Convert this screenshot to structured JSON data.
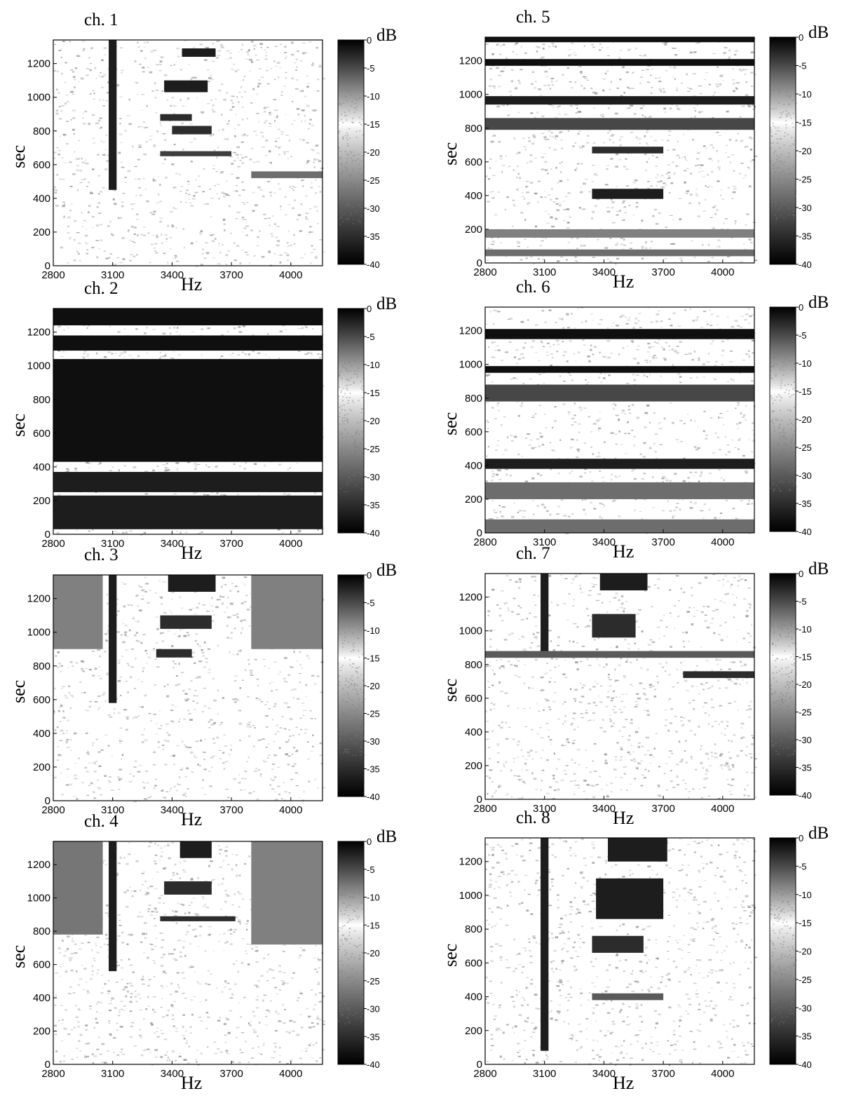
{
  "chart_data": [
    {
      "type": "heatmap",
      "title": "ch. 1",
      "xlabel": "Hz",
      "ylabel": "sec",
      "colorbar_label": "dB",
      "x_ticks": [
        "2800",
        "3100",
        "3400",
        "3700",
        "4000"
      ],
      "y_ticks": [
        "0",
        "200",
        "400",
        "600",
        "800",
        "1000",
        "1200"
      ],
      "colorbar_ticks": [
        "0",
        "-5",
        "-10",
        "-15",
        "-20",
        "-25",
        "-30",
        "-35",
        "-40"
      ],
      "xlim": [
        2800,
        4160
      ],
      "ylim": [
        0,
        1340
      ],
      "clim": [
        -40,
        0
      ],
      "colormap": "white at -15 dB, black at 0 and -40 dB",
      "bands": [
        {
          "y": [
            1240,
            1290
          ],
          "x": [
            3450,
            3620
          ],
          "level": -2
        },
        {
          "y": [
            1030,
            1100
          ],
          "x": [
            3360,
            3580
          ],
          "level": -2
        },
        {
          "y": [
            860,
            900
          ],
          "x": [
            3340,
            3500
          ],
          "level": -3
        },
        {
          "y": [
            780,
            830
          ],
          "x": [
            3400,
            3600
          ],
          "level": -3
        },
        {
          "y": [
            450,
            1340
          ],
          "x": [
            3080,
            3120
          ],
          "level": -2
        },
        {
          "y": [
            650,
            680
          ],
          "x": [
            3340,
            3700
          ],
          "level": -33
        },
        {
          "y": [
            520,
            560
          ],
          "x": [
            3800,
            4160
          ],
          "level": -28
        }
      ]
    },
    {
      "type": "heatmap",
      "title": "ch. 5",
      "xlabel": "Hz",
      "ylabel": "sec",
      "colorbar_label": "dB",
      "x_ticks": [
        "2800",
        "3100",
        "3400",
        "3700",
        "4000"
      ],
      "y_ticks": [
        "0",
        "200",
        "400",
        "600",
        "800",
        "1000",
        "1200"
      ],
      "colorbar_ticks": [
        "0",
        "-5",
        "-10",
        "-15",
        "-20",
        "-25",
        "-30",
        "-35",
        "-40"
      ],
      "xlim": [
        2800,
        4160
      ],
      "ylim": [
        0,
        1340
      ],
      "clim": [
        -40,
        0
      ],
      "colormap": "white at -15 dB, black at 0 and -40 dB",
      "bands": [
        {
          "y": [
            1310,
            1340
          ],
          "x": [
            2800,
            4160
          ],
          "level": -1
        },
        {
          "y": [
            1170,
            1210
          ],
          "x": [
            2800,
            4160
          ],
          "level": -1
        },
        {
          "y": [
            940,
            990
          ],
          "x": [
            2800,
            4160
          ],
          "level": -2
        },
        {
          "y": [
            790,
            860
          ],
          "x": [
            2800,
            4160
          ],
          "level": -32
        },
        {
          "y": [
            380,
            440
          ],
          "x": [
            3340,
            3700
          ],
          "level": -2
        },
        {
          "y": [
            650,
            690
          ],
          "x": [
            3340,
            3700
          ],
          "level": -3
        },
        {
          "y": [
            40,
            80
          ],
          "x": [
            2800,
            4160
          ],
          "level": -28
        },
        {
          "y": [
            150,
            200
          ],
          "x": [
            2800,
            4160
          ],
          "level": -26
        }
      ]
    },
    {
      "type": "heatmap",
      "title": "ch. 2",
      "xlabel": "Hz",
      "ylabel": "sec",
      "colorbar_label": "dB",
      "x_ticks": [
        "2800",
        "3100",
        "3400",
        "3700",
        "4000"
      ],
      "y_ticks": [
        "0",
        "200",
        "400",
        "600",
        "800",
        "1000",
        "1200"
      ],
      "colorbar_ticks": [
        "0",
        "-5",
        "-10",
        "-15",
        "-20",
        "-25",
        "-30",
        "-35",
        "-40"
      ],
      "xlim": [
        2800,
        4160
      ],
      "ylim": [
        0,
        1340
      ],
      "clim": [
        -40,
        0
      ],
      "colormap": "white at -15 dB, black at 0 and -40 dB",
      "bands": [
        {
          "y": [
            430,
            1040
          ],
          "x": [
            2800,
            4160
          ],
          "level": -1
        },
        {
          "y": [
            1090,
            1180
          ],
          "x": [
            2800,
            4160
          ],
          "level": -1
        },
        {
          "y": [
            1240,
            1340
          ],
          "x": [
            2800,
            4160
          ],
          "level": -1
        },
        {
          "y": [
            30,
            230
          ],
          "x": [
            2800,
            4160
          ],
          "level": -2
        },
        {
          "y": [
            250,
            370
          ],
          "x": [
            2800,
            4160
          ],
          "level": -2
        }
      ]
    },
    {
      "type": "heatmap",
      "title": "ch. 6",
      "xlabel": "Hz",
      "ylabel": "sec",
      "colorbar_label": "dB",
      "x_ticks": [
        "2800",
        "3100",
        "3400",
        "3700",
        "4000"
      ],
      "y_ticks": [
        "0",
        "200",
        "400",
        "600",
        "800",
        "1000",
        "1200"
      ],
      "colorbar_ticks": [
        "0",
        "-5",
        "-10",
        "-15",
        "-20",
        "-25",
        "-30",
        "-35",
        "-40"
      ],
      "xlim": [
        2800,
        4160
      ],
      "ylim": [
        0,
        1340
      ],
      "clim": [
        -40,
        0
      ],
      "colormap": "white at -15 dB, black at 0 and -40 dB",
      "bands": [
        {
          "y": [
            1150,
            1210
          ],
          "x": [
            2800,
            4160
          ],
          "level": -1
        },
        {
          "y": [
            950,
            990
          ],
          "x": [
            2800,
            4160
          ],
          "level": -1
        },
        {
          "y": [
            780,
            880
          ],
          "x": [
            2800,
            4160
          ],
          "level": -32
        },
        {
          "y": [
            380,
            440
          ],
          "x": [
            2800,
            4160
          ],
          "level": -2
        },
        {
          "y": [
            200,
            300
          ],
          "x": [
            2800,
            4160
          ],
          "level": -28
        },
        {
          "y": [
            0,
            80
          ],
          "x": [
            2800,
            4160
          ],
          "level": -28
        }
      ]
    },
    {
      "type": "heatmap",
      "title": "ch. 3",
      "xlabel": "Hz",
      "ylabel": "sec",
      "colorbar_label": "dB",
      "x_ticks": [
        "2800",
        "3100",
        "3400",
        "3700",
        "4000"
      ],
      "y_ticks": [
        "0",
        "200",
        "400",
        "600",
        "800",
        "1000",
        "1200"
      ],
      "colorbar_ticks": [
        "0",
        "-5",
        "-10",
        "-15",
        "-20",
        "-25",
        "-30",
        "-35",
        "-40"
      ],
      "xlim": [
        2800,
        4160
      ],
      "ylim": [
        0,
        1340
      ],
      "clim": [
        -40,
        0
      ],
      "colormap": "white at -15 dB, black at 0 and -40 dB",
      "bands": [
        {
          "y": [
            1240,
            1340
          ],
          "x": [
            3380,
            3620
          ],
          "level": -2
        },
        {
          "y": [
            1020,
            1100
          ],
          "x": [
            3340,
            3600
          ],
          "level": -3
        },
        {
          "y": [
            850,
            900
          ],
          "x": [
            3320,
            3500
          ],
          "level": -3
        },
        {
          "y": [
            580,
            1340
          ],
          "x": [
            3080,
            3120
          ],
          "level": -2
        },
        {
          "y": [
            900,
            1340
          ],
          "x": [
            2800,
            3050
          ],
          "level": -26
        },
        {
          "y": [
            900,
            1340
          ],
          "x": [
            3800,
            4160
          ],
          "level": -26
        }
      ]
    },
    {
      "type": "heatmap",
      "title": "ch. 7",
      "xlabel": "Hz",
      "ylabel": "sec",
      "colorbar_label": "dB",
      "x_ticks": [
        "2800",
        "3100",
        "3400",
        "3700",
        "4000"
      ],
      "y_ticks": [
        "0",
        "200",
        "400",
        "600",
        "800",
        "1000",
        "1200"
      ],
      "colorbar_ticks": [
        "0",
        "-5",
        "-10",
        "-15",
        "-20",
        "-25",
        "-30",
        "-35",
        "-40"
      ],
      "xlim": [
        2800,
        4160
      ],
      "ylim": [
        0,
        1340
      ],
      "clim": [
        -40,
        0
      ],
      "colormap": "white at -15 dB, black at 0 and -40 dB",
      "bands": [
        {
          "y": [
            1240,
            1340
          ],
          "x": [
            3380,
            3620
          ],
          "level": -2
        },
        {
          "y": [
            960,
            1100
          ],
          "x": [
            3340,
            3560
          ],
          "level": -3
        },
        {
          "y": [
            880,
            1340
          ],
          "x": [
            3080,
            3120
          ],
          "level": -2
        },
        {
          "y": [
            720,
            760
          ],
          "x": [
            3800,
            4160
          ],
          "level": -3
        },
        {
          "y": [
            840,
            880
          ],
          "x": [
            2800,
            4160
          ],
          "level": -30
        }
      ]
    },
    {
      "type": "heatmap",
      "title": "ch. 4",
      "xlabel": "Hz",
      "ylabel": "sec",
      "colorbar_label": "dB",
      "x_ticks": [
        "2800",
        "3100",
        "3400",
        "3700",
        "4000"
      ],
      "y_ticks": [
        "0",
        "200",
        "400",
        "600",
        "800",
        "1000",
        "1200"
      ],
      "colorbar_ticks": [
        "0",
        "-5",
        "-10",
        "-15",
        "-20",
        "-25",
        "-30",
        "-35",
        "-40"
      ],
      "xlim": [
        2800,
        4160
      ],
      "ylim": [
        0,
        1340
      ],
      "clim": [
        -40,
        0
      ],
      "colormap": "white at -15 dB, black at 0 and -40 dB",
      "bands": [
        {
          "y": [
            1240,
            1340
          ],
          "x": [
            3440,
            3600
          ],
          "level": -2
        },
        {
          "y": [
            1020,
            1100
          ],
          "x": [
            3360,
            3600
          ],
          "level": -3
        },
        {
          "y": [
            860,
            890
          ],
          "x": [
            3340,
            3720
          ],
          "level": -3
        },
        {
          "y": [
            560,
            1340
          ],
          "x": [
            3080,
            3120
          ],
          "level": -2
        },
        {
          "y": [
            720,
            1340
          ],
          "x": [
            3800,
            4160
          ],
          "level": -26
        },
        {
          "y": [
            780,
            1340
          ],
          "x": [
            2800,
            3050
          ],
          "level": -27
        }
      ]
    },
    {
      "type": "heatmap",
      "title": "ch. 8",
      "xlabel": "Hz",
      "ylabel": "sec",
      "colorbar_label": "dB",
      "x_ticks": [
        "2800",
        "3100",
        "3400",
        "3700",
        "4000"
      ],
      "y_ticks": [
        "0",
        "200",
        "400",
        "600",
        "800",
        "1000",
        "1200"
      ],
      "colorbar_ticks": [
        "0",
        "-5",
        "-10",
        "-15",
        "-20",
        "-25",
        "-30",
        "-35",
        "-40"
      ],
      "xlim": [
        2800,
        4160
      ],
      "ylim": [
        0,
        1340
      ],
      "clim": [
        -40,
        0
      ],
      "colormap": "white at -15 dB, black at 0 and -40 dB",
      "bands": [
        {
          "y": [
            1200,
            1340
          ],
          "x": [
            3420,
            3720
          ],
          "level": -2
        },
        {
          "y": [
            860,
            1100
          ],
          "x": [
            3360,
            3700
          ],
          "level": -2
        },
        {
          "y": [
            660,
            760
          ],
          "x": [
            3340,
            3600
          ],
          "level": -3
        },
        {
          "y": [
            80,
            1340
          ],
          "x": [
            3080,
            3120
          ],
          "level": -2
        },
        {
          "y": [
            380,
            420
          ],
          "x": [
            3340,
            3700
          ],
          "level": -30
        }
      ]
    }
  ]
}
